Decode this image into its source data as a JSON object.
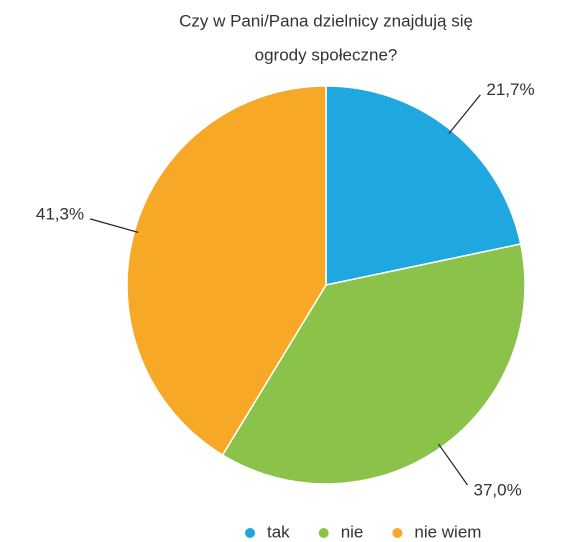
{
  "chart_data": {
    "type": "pie",
    "title": [
      "Czy w Pani/Pana dzielnicy znajdują się",
      "ogrody społeczne?"
    ],
    "categories": [
      "tak",
      "nie",
      "nie wiem"
    ],
    "values": [
      21.7,
      37.0,
      41.3
    ],
    "value_labels": [
      "21,7%",
      "37,0%",
      "41,3%"
    ],
    "colors": [
      "#1fa8e0",
      "#8bc34a",
      "#f7a826"
    ],
    "legend": "bottom"
  }
}
